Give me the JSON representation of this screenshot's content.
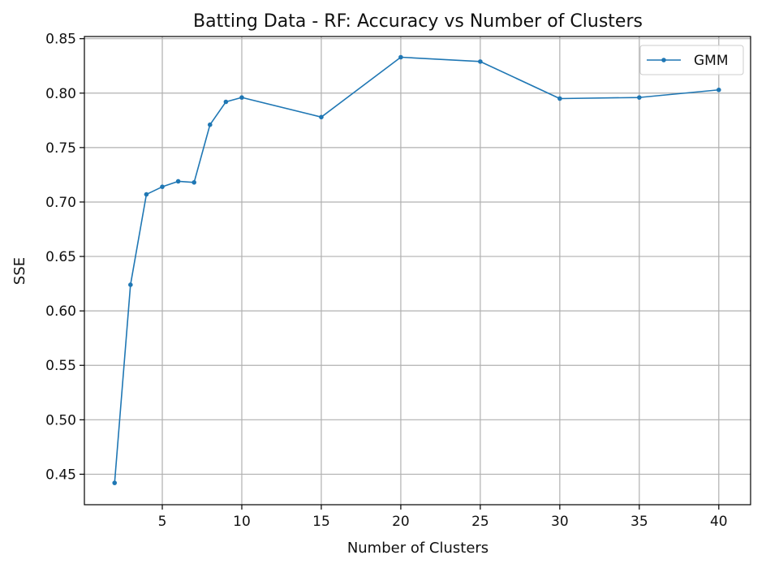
{
  "chart_data": {
    "type": "line",
    "title": "Batting Data - RF: Accuracy vs Number of Clusters",
    "xlabel": "Number of Clusters",
    "ylabel": "SSE",
    "xlim": [
      0.1,
      42.0
    ],
    "ylim": [
      0.422,
      0.852
    ],
    "xticks": [
      5,
      10,
      15,
      20,
      25,
      30,
      35,
      40
    ],
    "yticks": [
      0.45,
      0.5,
      0.55,
      0.6,
      0.65,
      0.7,
      0.75,
      0.8,
      0.85
    ],
    "ytick_labels": [
      "0.45",
      "0.50",
      "0.55",
      "0.60",
      "0.65",
      "0.70",
      "0.75",
      "0.80",
      "0.85"
    ],
    "grid": true,
    "legend_position": "top-right",
    "series": [
      {
        "name": "GMM",
        "color": "#1f77b4",
        "marker": "dot",
        "x": [
          2,
          3,
          4,
          5,
          6,
          7,
          8,
          9,
          10,
          15,
          20,
          25,
          30,
          35,
          40
        ],
        "y": [
          0.442,
          0.624,
          0.707,
          0.714,
          0.719,
          0.718,
          0.771,
          0.792,
          0.796,
          0.778,
          0.833,
          0.829,
          0.795,
          0.796,
          0.803
        ]
      }
    ]
  }
}
